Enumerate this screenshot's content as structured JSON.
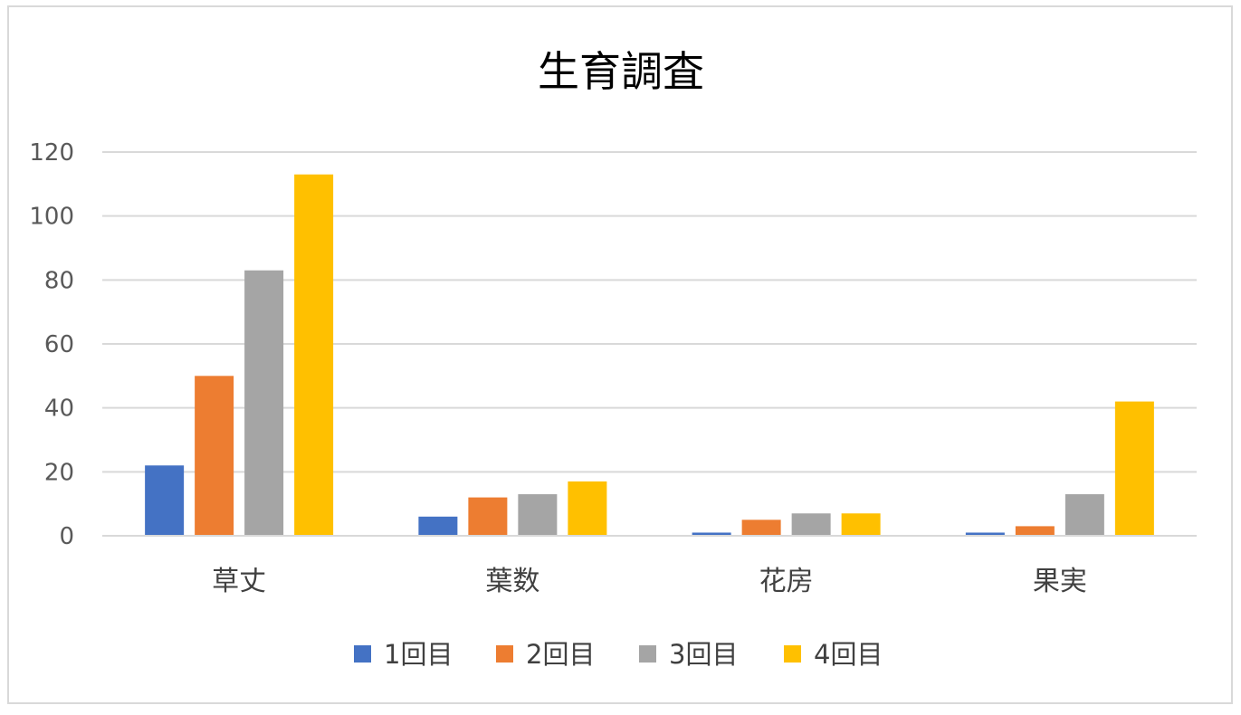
{
  "chart_data": {
    "type": "bar",
    "title": "生育調査",
    "xlabel": "",
    "ylabel": "",
    "categories": [
      "草丈",
      "葉数",
      "花房",
      "果実"
    ],
    "series": [
      {
        "name": "1回目",
        "color": "#4472c4",
        "values": [
          22,
          6,
          1,
          1
        ]
      },
      {
        "name": "2回目",
        "color": "#ed7d31",
        "values": [
          50,
          12,
          5,
          3
        ]
      },
      {
        "name": "3回目",
        "color": "#a5a5a5",
        "values": [
          83,
          13,
          7,
          13
        ]
      },
      {
        "name": "4回目",
        "color": "#ffc000",
        "values": [
          113,
          17,
          7,
          42
        ]
      }
    ],
    "ylim": [
      0,
      120
    ],
    "yticks": [
      0,
      20,
      40,
      60,
      80,
      100,
      120
    ],
    "grid": true,
    "legend_position": "bottom"
  }
}
